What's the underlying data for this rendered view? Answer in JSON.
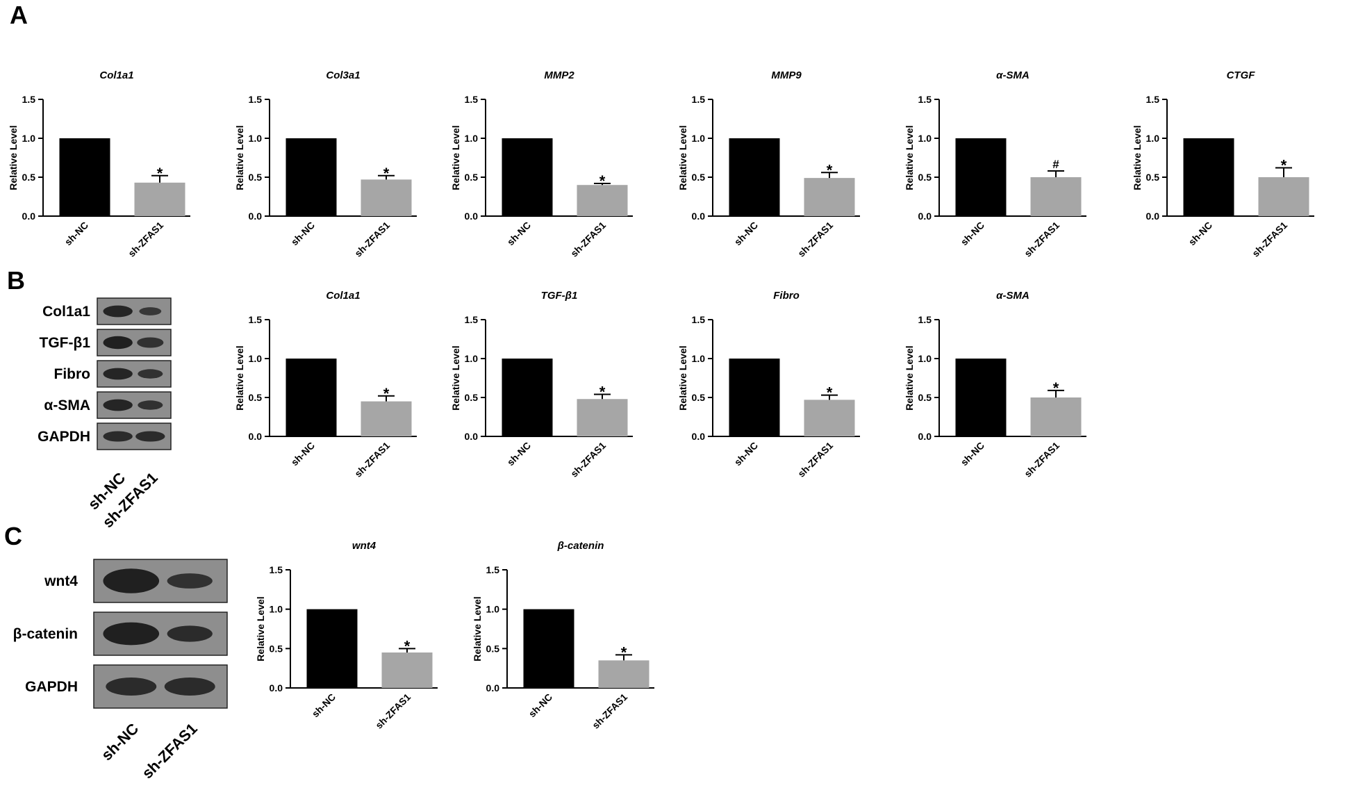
{
  "panels": {
    "a": "A",
    "b": "B",
    "c": "C"
  },
  "colors": {
    "control_bar": "#000000",
    "treatment_bar": "#a6a6a6",
    "blot_bg": "#8e8e8e",
    "blot_band": "#1a1a1a"
  },
  "blots": {
    "b": {
      "rows": [
        "Col1a1",
        "TGF-β1",
        "Fibro",
        "α-SMA",
        "GAPDH"
      ],
      "lanes": [
        "sh-NC",
        "sh-ZFAS1"
      ]
    },
    "c": {
      "rows": [
        "wnt4",
        "β-catenin",
        "GAPDH"
      ],
      "lanes": [
        "sh-NC",
        "sh-ZFAS1"
      ]
    }
  },
  "chart_data": [
    {
      "type": "bar",
      "title": "Col1a1",
      "ylabel": "Relative Level",
      "categories": [
        "sh-NC",
        "sh-ZFAS1"
      ],
      "values": [
        1.0,
        0.43
      ],
      "errors": [
        0,
        0.09
      ],
      "significance": [
        "",
        "*"
      ],
      "ylim": [
        0,
        1.5
      ],
      "yticks": [
        "0.0",
        "0.5",
        "1.0",
        "1.5"
      ]
    },
    {
      "type": "bar",
      "title": "Col3a1",
      "ylabel": "Relative Level",
      "categories": [
        "sh-NC",
        "sh-ZFAS1"
      ],
      "values": [
        1.0,
        0.47
      ],
      "errors": [
        0,
        0.05
      ],
      "significance": [
        "",
        "*"
      ],
      "ylim": [
        0,
        1.5
      ],
      "yticks": [
        "0.0",
        "0.5",
        "1.0",
        "1.5"
      ]
    },
    {
      "type": "bar",
      "title": "MMP2",
      "ylabel": "Relative Level",
      "categories": [
        "sh-NC",
        "sh-ZFAS1"
      ],
      "values": [
        1.0,
        0.4
      ],
      "errors": [
        0,
        0.02
      ],
      "significance": [
        "",
        "*"
      ],
      "ylim": [
        0,
        1.5
      ],
      "yticks": [
        "0.0",
        "0.5",
        "1.0",
        "1.5"
      ]
    },
    {
      "type": "bar",
      "title": "MMP9",
      "ylabel": "Relative Level",
      "categories": [
        "sh-NC",
        "sh-ZFAS1"
      ],
      "values": [
        1.0,
        0.49
      ],
      "errors": [
        0,
        0.07
      ],
      "significance": [
        "",
        "*"
      ],
      "ylim": [
        0,
        1.5
      ],
      "yticks": [
        "0.0",
        "0.5",
        "1.0",
        "1.5"
      ]
    },
    {
      "type": "bar",
      "title": "α-SMA",
      "ylabel": "Relative Level",
      "categories": [
        "sh-NC",
        "sh-ZFAS1"
      ],
      "values": [
        1.0,
        0.5
      ],
      "errors": [
        0,
        0.08
      ],
      "significance": [
        "",
        "#"
      ],
      "ylim": [
        0,
        1.5
      ],
      "yticks": [
        "0.0",
        "0.5",
        "1.0",
        "1.5"
      ]
    },
    {
      "type": "bar",
      "title": "CTGF",
      "ylabel": "Relative Level",
      "categories": [
        "sh-NC",
        "sh-ZFAS1"
      ],
      "values": [
        1.0,
        0.5
      ],
      "errors": [
        0,
        0.12
      ],
      "significance": [
        "",
        "*"
      ],
      "ylim": [
        0,
        1.5
      ],
      "yticks": [
        "0.0",
        "0.5",
        "1.0",
        "1.5"
      ]
    },
    {
      "type": "bar",
      "title": "Col1a1",
      "ylabel": "Relative Level",
      "categories": [
        "sh-NC",
        "sh-ZFAS1"
      ],
      "values": [
        1.0,
        0.45
      ],
      "errors": [
        0,
        0.07
      ],
      "significance": [
        "",
        "*"
      ],
      "ylim": [
        0,
        1.5
      ],
      "yticks": [
        "0.0",
        "0.5",
        "1.0",
        "1.5"
      ]
    },
    {
      "type": "bar",
      "title": "TGF-β1",
      "ylabel": "Relative Level",
      "categories": [
        "sh-NC",
        "sh-ZFAS1"
      ],
      "values": [
        1.0,
        0.48
      ],
      "errors": [
        0,
        0.06
      ],
      "significance": [
        "",
        "*"
      ],
      "ylim": [
        0,
        1.5
      ],
      "yticks": [
        "0.0",
        "0.5",
        "1.0",
        "1.5"
      ]
    },
    {
      "type": "bar",
      "title": "Fibro",
      "ylabel": "Relative Level",
      "categories": [
        "sh-NC",
        "sh-ZFAS1"
      ],
      "values": [
        1.0,
        0.47
      ],
      "errors": [
        0,
        0.06
      ],
      "significance": [
        "",
        "*"
      ],
      "ylim": [
        0,
        1.5
      ],
      "yticks": [
        "0.0",
        "0.5",
        "1.0",
        "1.5"
      ]
    },
    {
      "type": "bar",
      "title": "α-SMA",
      "ylabel": "Relative Level",
      "categories": [
        "sh-NC",
        "sh-ZFAS1"
      ],
      "values": [
        1.0,
        0.5
      ],
      "errors": [
        0,
        0.09
      ],
      "significance": [
        "",
        "*"
      ],
      "ylim": [
        0,
        1.5
      ],
      "yticks": [
        "0.0",
        "0.5",
        "1.0",
        "1.5"
      ]
    },
    {
      "type": "bar",
      "title": "wnt4",
      "ylabel": "Relative Level",
      "categories": [
        "sh-NC",
        "sh-ZFAS1"
      ],
      "values": [
        1.0,
        0.45
      ],
      "errors": [
        0,
        0.05
      ],
      "significance": [
        "",
        "*"
      ],
      "ylim": [
        0,
        1.5
      ],
      "yticks": [
        "0.0",
        "0.5",
        "1.0",
        "1.5"
      ]
    },
    {
      "type": "bar",
      "title": "β-catenin",
      "ylabel": "Relative Level",
      "categories": [
        "sh-NC",
        "sh-ZFAS1"
      ],
      "values": [
        1.0,
        0.35
      ],
      "errors": [
        0,
        0.07
      ],
      "significance": [
        "",
        "*"
      ],
      "ylim": [
        0,
        1.5
      ],
      "yticks": [
        "0.0",
        "0.5",
        "1.0",
        "1.5"
      ]
    }
  ]
}
